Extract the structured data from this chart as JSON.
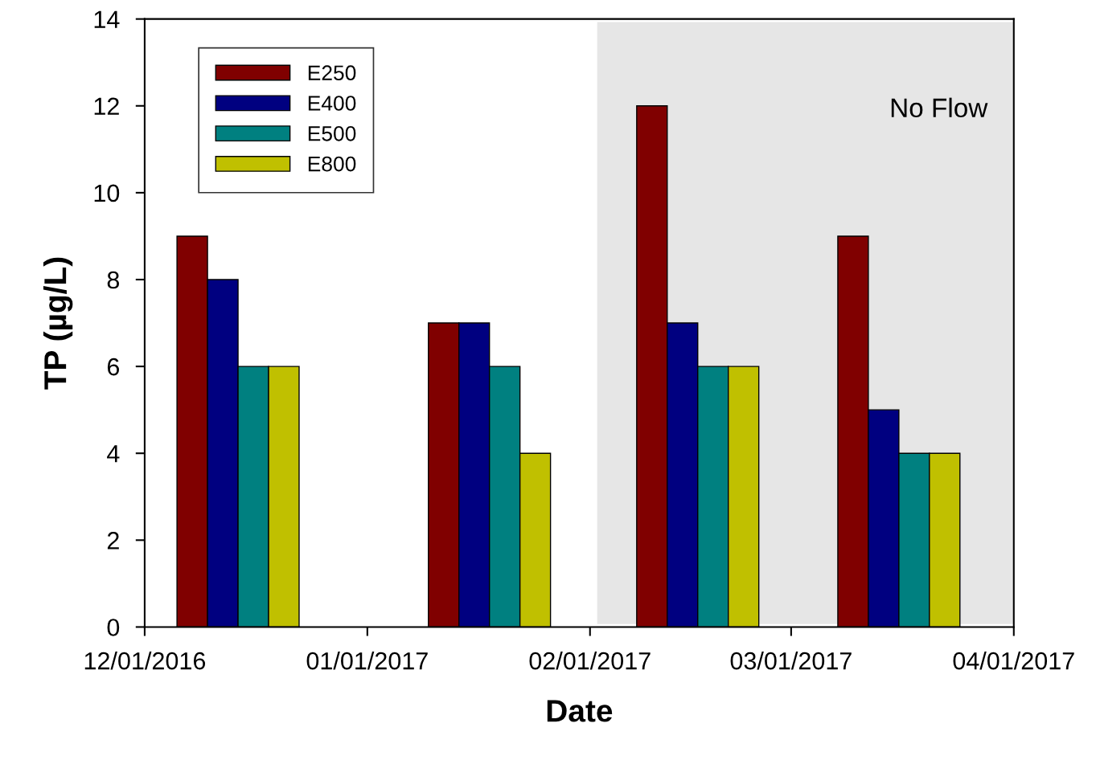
{
  "chart_data": {
    "type": "bar",
    "xlabel": "Date",
    "ylabel": "TP (µg/L)",
    "x": [
      "2016-12-14",
      "2017-01-18",
      "2017-02-16",
      "2017-03-16"
    ],
    "series": [
      {
        "name": "E250",
        "color": "#800000",
        "values": [
          9,
          7,
          12,
          9
        ]
      },
      {
        "name": "E400",
        "color": "#000080",
        "values": [
          8,
          7,
          7,
          5
        ]
      },
      {
        "name": "E500",
        "color": "#008080",
        "values": [
          6,
          6,
          6,
          4
        ]
      },
      {
        "name": "E800",
        "color": "#c0c000",
        "values": [
          6,
          4,
          6,
          4
        ]
      }
    ],
    "xlim": [
      "2016-12-01",
      "2017-04-01"
    ],
    "xticks": [
      {
        "value": "2016-12-01",
        "label": "12/01/2016"
      },
      {
        "value": "2017-01-01",
        "label": "01/01/2017"
      },
      {
        "value": "2017-02-01",
        "label": "02/01/2017"
      },
      {
        "value": "2017-03-01",
        "label": "03/01/2017"
      },
      {
        "value": "2017-04-01",
        "label": "04/01/2017"
      }
    ],
    "ylim": [
      0,
      14
    ],
    "yticks": [
      0,
      2,
      4,
      6,
      8,
      10,
      12,
      14
    ],
    "bands": [
      {
        "axis": "x",
        "from": "2017-02-02",
        "to": "2017-04-01",
        "label": "No Flow",
        "color": "#e6e6e6"
      }
    ],
    "grid": false,
    "legend": "top left"
  }
}
